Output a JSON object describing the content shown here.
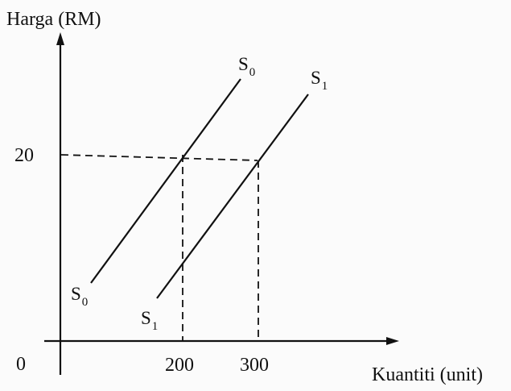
{
  "axes": {
    "y_label": "Harga (RM)",
    "x_label": "Kuantiti (unit)",
    "origin_label": "0",
    "y_tick": "20",
    "x_ticks": [
      "200",
      "300"
    ]
  },
  "curves": {
    "s0": {
      "letter": "S",
      "sub": "0"
    },
    "s1": {
      "letter": "S",
      "sub": "1"
    }
  },
  "chart_data": {
    "type": "line",
    "x": {
      "label": "Kuantiti (unit)",
      "ticks": [
        200,
        300
      ]
    },
    "y": {
      "label": "Harga (RM)",
      "ticks": [
        20
      ]
    },
    "series": [
      {
        "name": "S0"
      },
      {
        "name": "S1"
      }
    ],
    "reference_points": [
      {
        "series": "S0",
        "x": 200,
        "y": 20
      },
      {
        "series": "S1",
        "x": 300,
        "y": 20
      }
    ]
  },
  "colors": {
    "ink": "#111111",
    "paper": "#fbfbfb"
  }
}
